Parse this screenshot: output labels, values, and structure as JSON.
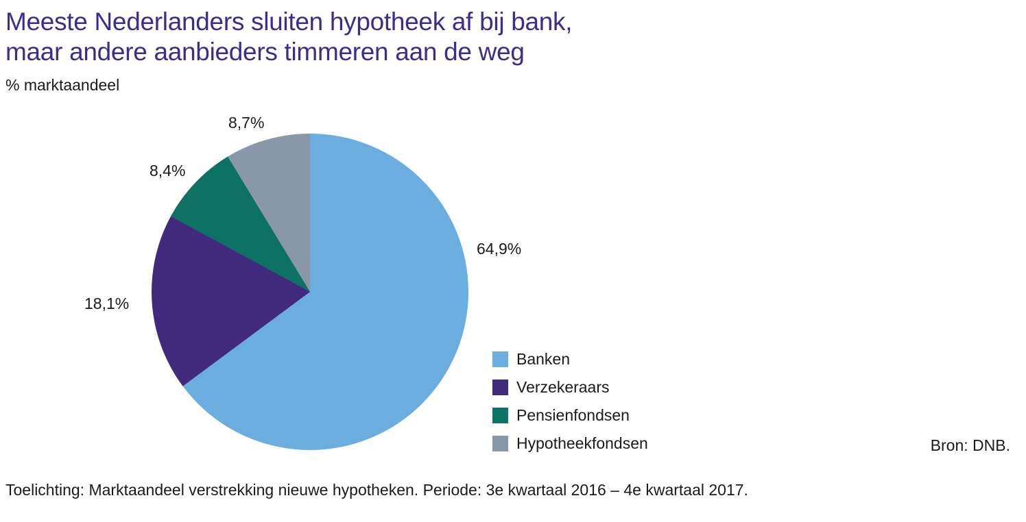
{
  "header": {
    "title_line1": "Meeste Nederlanders sluiten hypotheek af bij bank,",
    "title_line2": "maar andere aanbieders timmeren aan de weg",
    "subtitle": "% marktaandeel",
    "title_color": "#3A2E8C"
  },
  "chart_data": {
    "type": "pie",
    "title": "Meeste Nederlanders sluiten hypotheek af bij bank, maar andere aanbieders timmeren aan de weg",
    "unit": "% marktaandeel",
    "start_angle_deg": 0,
    "direction": "clockwise",
    "slices": [
      {
        "name": "Banken",
        "value": 64.9,
        "label": "64,9%",
        "color": "#6BADDE"
      },
      {
        "name": "Verzekeraars",
        "value": 18.1,
        "label": "18,1%",
        "color": "#41297D"
      },
      {
        "name": "Pensienfondsen",
        "value": 8.4,
        "label": "8,4%",
        "color": "#0D7164"
      },
      {
        "name": "Hypotheekfondsen",
        "value": 8.7,
        "label": "8,7%",
        "color": "#8898AA"
      }
    ],
    "legend_position": "right-bottom",
    "grid": false
  },
  "source": "Bron: DNB.",
  "footer": "Toelichting: Marktaandeel verstrekking nieuwe hypotheken. Periode: 3e kwartaal 2016 – 4e kwartaal 2017."
}
